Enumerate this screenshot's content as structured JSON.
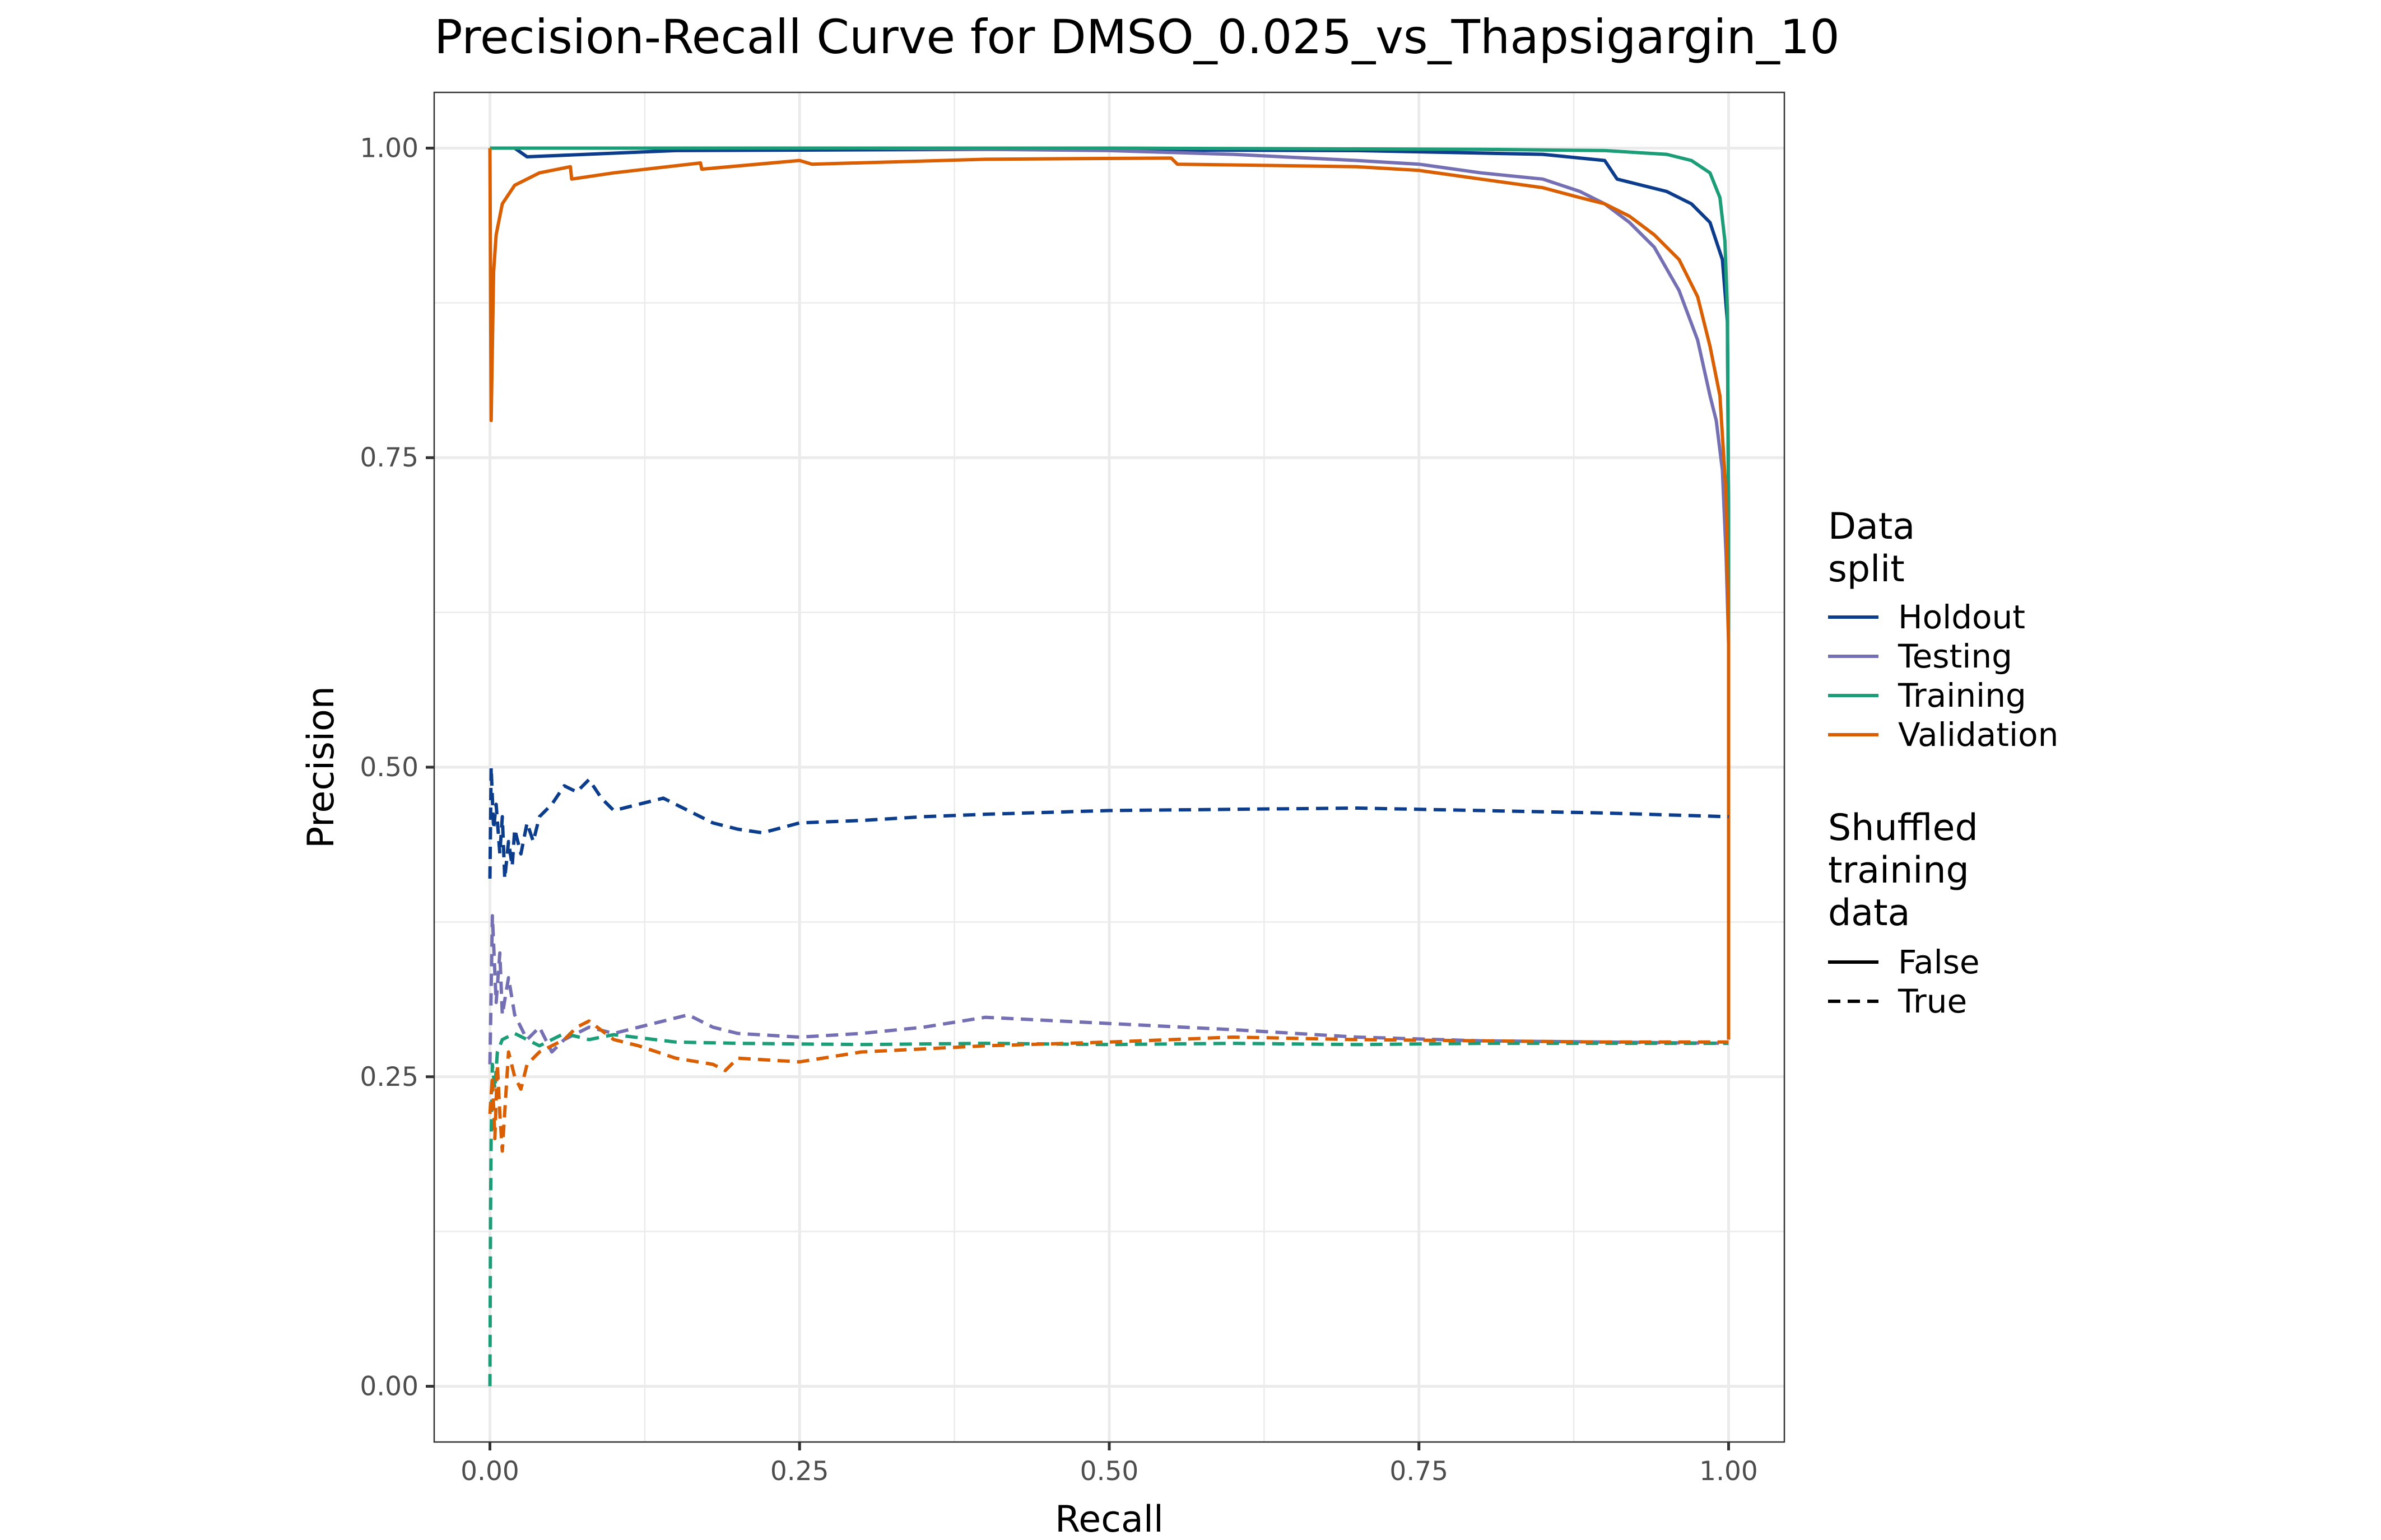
{
  "chart_data": {
    "type": "line",
    "title": "Precision-Recall Curve for DMSO_0.025_vs_Thapsigargin_10",
    "xlabel": "Recall",
    "ylabel": "Precision",
    "xlim": [
      -0.045,
      1.045
    ],
    "ylim": [
      -0.045,
      1.045
    ],
    "x_ticks": [
      0,
      0.25,
      0.5,
      0.75,
      1.0
    ],
    "x_tick_labels": [
      "0.00",
      "0.25",
      "0.50",
      "0.75",
      "1.00"
    ],
    "y_ticks": [
      0,
      0.25,
      0.5,
      0.75,
      1.0
    ],
    "y_tick_labels": [
      "0.00",
      "0.25",
      "0.50",
      "0.75",
      "1.00"
    ],
    "grid": true,
    "legend_position": "right",
    "legend": {
      "color_title": "Data\nsplit",
      "linetype_title": "Shuffled\ntraining\ndata",
      "color_entries": [
        {
          "label": "Holdout",
          "color": "#0b3d8c"
        },
        {
          "label": "Testing",
          "color": "#7570b3"
        },
        {
          "label": "Training",
          "color": "#1b9e77"
        },
        {
          "label": "Validation",
          "color": "#d95f02"
        }
      ],
      "linetype_entries": [
        {
          "label": "False",
          "dash": "solid"
        },
        {
          "label": "True",
          "dash": "dashed"
        }
      ]
    },
    "series": [
      {
        "split": "Holdout",
        "shuffled": "False",
        "color": "#0b3d8c",
        "x": [
          0,
          0.001,
          0.02,
          0.03,
          0.15,
          0.4,
          0.7,
          0.85,
          0.9,
          0.91,
          0.95,
          0.97,
          0.985,
          0.995,
          0.999,
          1.0,
          1.0
        ],
        "y": [
          1.0,
          1.0,
          1.0,
          0.993,
          0.998,
          0.999,
          0.998,
          0.995,
          0.99,
          0.975,
          0.965,
          0.955,
          0.94,
          0.91,
          0.86,
          0.7,
          0.28
        ]
      },
      {
        "split": "Testing",
        "shuffled": "False",
        "color": "#7570b3",
        "x": [
          0,
          0.001,
          0.1,
          0.3,
          0.5,
          0.6,
          0.7,
          0.75,
          0.8,
          0.85,
          0.88,
          0.9,
          0.92,
          0.94,
          0.96,
          0.975,
          0.985,
          0.99,
          0.995,
          0.998,
          1.0,
          1.0
        ],
        "y": [
          1.0,
          1.0,
          1.0,
          1.0,
          0.998,
          0.995,
          0.99,
          0.987,
          0.98,
          0.975,
          0.965,
          0.955,
          0.94,
          0.92,
          0.885,
          0.845,
          0.8,
          0.78,
          0.74,
          0.67,
          0.6,
          0.28
        ]
      },
      {
        "split": "Training",
        "shuffled": "False",
        "color": "#1b9e77",
        "x": [
          0,
          0.001,
          0.2,
          0.5,
          0.8,
          0.9,
          0.95,
          0.97,
          0.985,
          0.993,
          0.997,
          0.999,
          1.0,
          1.0
        ],
        "y": [
          1.0,
          1.0,
          1.0,
          1.0,
          0.999,
          0.998,
          0.995,
          0.99,
          0.98,
          0.96,
          0.925,
          0.87,
          0.7,
          0.55
        ]
      },
      {
        "split": "Validation",
        "shuffled": "False",
        "color": "#d95f02",
        "x": [
          0,
          0.001,
          0.003,
          0.005,
          0.01,
          0.02,
          0.04,
          0.065,
          0.066,
          0.1,
          0.17,
          0.171,
          0.25,
          0.26,
          0.4,
          0.55,
          0.555,
          0.7,
          0.75,
          0.8,
          0.85,
          0.88,
          0.9,
          0.92,
          0.94,
          0.96,
          0.975,
          0.985,
          0.993,
          0.998,
          1.0,
          1.0
        ],
        "y": [
          1.0,
          0.78,
          0.9,
          0.93,
          0.955,
          0.97,
          0.98,
          0.985,
          0.975,
          0.98,
          0.988,
          0.983,
          0.99,
          0.987,
          0.991,
          0.992,
          0.987,
          0.985,
          0.982,
          0.975,
          0.968,
          0.96,
          0.955,
          0.945,
          0.93,
          0.91,
          0.88,
          0.84,
          0.8,
          0.72,
          0.6,
          0.28
        ]
      },
      {
        "split": "Holdout",
        "shuffled": "True",
        "color": "#0b3d8c",
        "x": [
          0,
          0.001,
          0.003,
          0.005,
          0.008,
          0.01,
          0.012,
          0.015,
          0.018,
          0.02,
          0.025,
          0.03,
          0.035,
          0.04,
          0.05,
          0.06,
          0.07,
          0.08,
          0.09,
          0.1,
          0.12,
          0.14,
          0.16,
          0.18,
          0.2,
          0.22,
          0.25,
          0.3,
          0.35,
          0.4,
          0.5,
          0.6,
          0.7,
          0.8,
          0.9,
          1.0
        ],
        "y": [
          0.41,
          0.5,
          0.45,
          0.47,
          0.43,
          0.46,
          0.41,
          0.44,
          0.42,
          0.45,
          0.43,
          0.455,
          0.44,
          0.46,
          0.47,
          0.485,
          0.48,
          0.49,
          0.475,
          0.465,
          0.47,
          0.475,
          0.465,
          0.455,
          0.45,
          0.447,
          0.455,
          0.457,
          0.46,
          0.462,
          0.465,
          0.466,
          0.467,
          0.465,
          0.463,
          0.46
        ]
      },
      {
        "split": "Testing",
        "shuffled": "True",
        "color": "#7570b3",
        "x": [
          0,
          0.002,
          0.005,
          0.008,
          0.01,
          0.015,
          0.02,
          0.03,
          0.04,
          0.05,
          0.06,
          0.08,
          0.1,
          0.12,
          0.14,
          0.16,
          0.18,
          0.2,
          0.25,
          0.3,
          0.35,
          0.4,
          0.5,
          0.6,
          0.7,
          0.8,
          0.9,
          1.0
        ],
        "y": [
          0.26,
          0.38,
          0.31,
          0.35,
          0.3,
          0.33,
          0.3,
          0.28,
          0.29,
          0.27,
          0.28,
          0.29,
          0.285,
          0.29,
          0.295,
          0.3,
          0.29,
          0.285,
          0.282,
          0.285,
          0.29,
          0.298,
          0.293,
          0.288,
          0.282,
          0.279,
          0.278,
          0.277
        ]
      },
      {
        "split": "Training",
        "shuffled": "True",
        "color": "#1b9e77",
        "x": [
          0,
          0.0005,
          0.001,
          0.002,
          0.004,
          0.006,
          0.01,
          0.02,
          0.03,
          0.04,
          0.06,
          0.08,
          0.1,
          0.15,
          0.2,
          0.3,
          0.4,
          0.5,
          0.6,
          0.7,
          0.8,
          0.9,
          1.0
        ],
        "y": [
          0.0,
          0.14,
          0.2,
          0.26,
          0.24,
          0.27,
          0.28,
          0.285,
          0.28,
          0.275,
          0.285,
          0.28,
          0.284,
          0.278,
          0.277,
          0.276,
          0.277,
          0.276,
          0.277,
          0.276,
          0.277,
          0.277,
          0.277
        ]
      },
      {
        "split": "Validation",
        "shuffled": "True",
        "color": "#d95f02",
        "x": [
          0,
          0.002,
          0.004,
          0.006,
          0.008,
          0.01,
          0.015,
          0.02,
          0.025,
          0.03,
          0.04,
          0.06,
          0.07,
          0.08,
          0.1,
          0.12,
          0.15,
          0.18,
          0.19,
          0.2,
          0.25,
          0.3,
          0.4,
          0.5,
          0.6,
          0.7,
          0.8,
          0.9,
          1.0
        ],
        "y": [
          0.22,
          0.25,
          0.2,
          0.26,
          0.22,
          0.19,
          0.27,
          0.25,
          0.24,
          0.26,
          0.27,
          0.28,
          0.29,
          0.295,
          0.28,
          0.275,
          0.265,
          0.26,
          0.255,
          0.265,
          0.262,
          0.27,
          0.275,
          0.278,
          0.282,
          0.28,
          0.279,
          0.278,
          0.278
        ]
      }
    ]
  }
}
